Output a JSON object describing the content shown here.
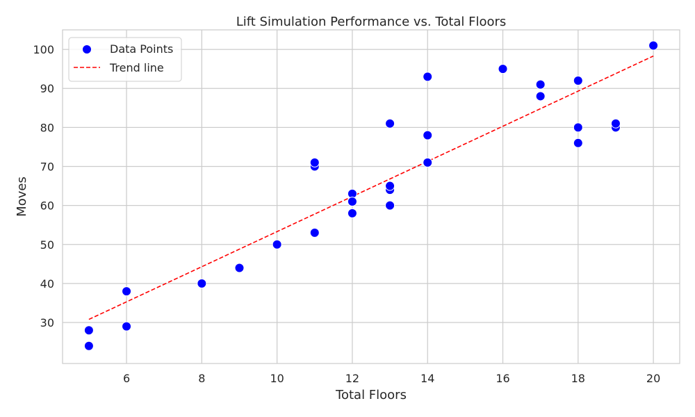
{
  "chart_data": {
    "type": "scatter",
    "title": "Lift Simulation Performance vs. Total Floors",
    "xlabel": "Total Floors",
    "ylabel": "Moves",
    "xlim": [
      4.3,
      20.7
    ],
    "ylim": [
      19.5,
      105
    ],
    "xticks": [
      6,
      8,
      10,
      12,
      14,
      16,
      18,
      20
    ],
    "yticks": [
      30,
      40,
      50,
      60,
      70,
      80,
      90,
      100
    ],
    "grid": true,
    "legend_position": "top-left",
    "series": [
      {
        "name": "Data Points",
        "kind": "scatter",
        "color": "#0000ff",
        "points": [
          {
            "x": 5,
            "y": 28
          },
          {
            "x": 5,
            "y": 24
          },
          {
            "x": 6,
            "y": 38
          },
          {
            "x": 6,
            "y": 29
          },
          {
            "x": 8,
            "y": 40
          },
          {
            "x": 9,
            "y": 44
          },
          {
            "x": 10,
            "y": 50
          },
          {
            "x": 11,
            "y": 70
          },
          {
            "x": 11,
            "y": 71
          },
          {
            "x": 11,
            "y": 53
          },
          {
            "x": 12,
            "y": 63
          },
          {
            "x": 12,
            "y": 61
          },
          {
            "x": 12,
            "y": 58
          },
          {
            "x": 13,
            "y": 81
          },
          {
            "x": 13,
            "y": 64
          },
          {
            "x": 13,
            "y": 65
          },
          {
            "x": 13,
            "y": 60
          },
          {
            "x": 14,
            "y": 93
          },
          {
            "x": 14,
            "y": 78
          },
          {
            "x": 14,
            "y": 71
          },
          {
            "x": 16,
            "y": 95
          },
          {
            "x": 17,
            "y": 91
          },
          {
            "x": 17,
            "y": 88
          },
          {
            "x": 18,
            "y": 92
          },
          {
            "x": 18,
            "y": 80
          },
          {
            "x": 18,
            "y": 76
          },
          {
            "x": 19,
            "y": 80
          },
          {
            "x": 19,
            "y": 81
          },
          {
            "x": 20,
            "y": 101
          }
        ]
      },
      {
        "name": "Trend line",
        "kind": "line",
        "style": "dashed",
        "color": "#ff0000",
        "points": [
          {
            "x": 5,
            "y": 30.8
          },
          {
            "x": 20,
            "y": 98.3
          }
        ]
      }
    ]
  }
}
